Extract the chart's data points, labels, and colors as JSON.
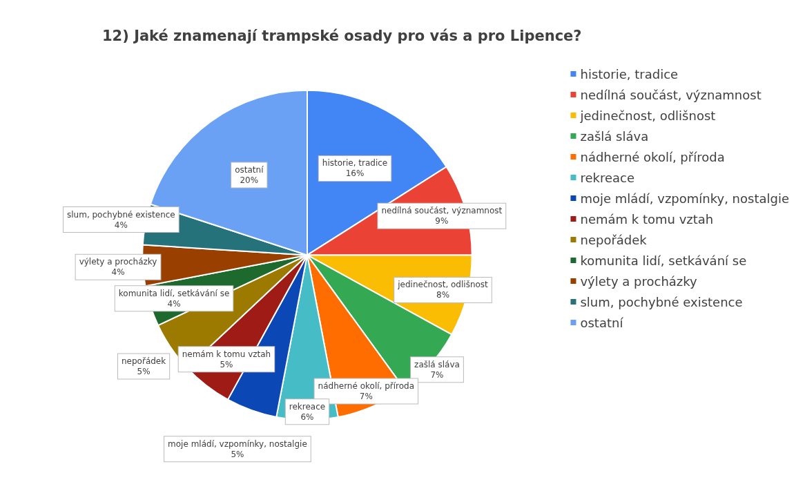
{
  "chart_data": {
    "type": "pie",
    "title": "12) Jaké znamenají trampské osady pro vás a pro Lipence?",
    "categories": [
      "historie, tradice",
      "nedílná součást, významnost",
      "jedinečnost, odlišnost",
      "zašlá sláva",
      "nádherné okolí, příroda",
      "rekreace",
      "moje mládí, vzpomínky, nostalgie",
      "nemám k tomu vztah",
      "nepořádek",
      "komunita lidí, setkávání se",
      "výlety a procházky",
      "slum, pochybné existence",
      "ostatní"
    ],
    "values": [
      16,
      9,
      8,
      7,
      7,
      6,
      5,
      5,
      5,
      4,
      4,
      4,
      20
    ],
    "colors": [
      "#4285f4",
      "#ea4335",
      "#fbbc04",
      "#34a853",
      "#ff6d01",
      "#46bdc6",
      "#0b47b5",
      "#9e1b16",
      "#9c7a00",
      "#1e6a2e",
      "#993f00",
      "#25727a",
      "#6aa1f5"
    ],
    "value_labels": [
      "16%",
      "9%",
      "8%",
      "7%",
      "7%",
      "6%",
      "5%",
      "5%",
      "5%",
      "4%",
      "4%",
      "4%",
      "20%"
    ],
    "legend": "right"
  }
}
